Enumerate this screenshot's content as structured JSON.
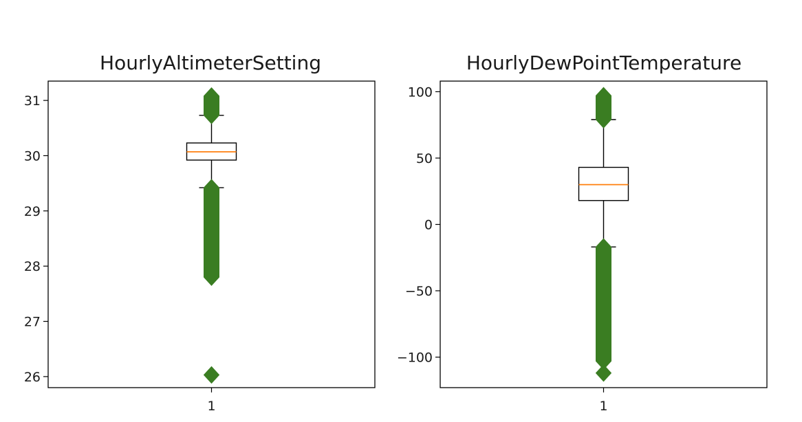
{
  "chart_data": [
    {
      "type": "box",
      "title": "HourlyAltimeterSetting",
      "xlabel": "",
      "ylabel": "",
      "categories": [
        "1"
      ],
      "ylim": [
        25.8,
        31.35
      ],
      "yticks": [
        26,
        27,
        28,
        29,
        30,
        31
      ],
      "ytick_labels": [
        "26",
        "27",
        "28",
        "29",
        "30",
        "31"
      ],
      "box": {
        "q1": 29.92,
        "median": 30.07,
        "q3": 30.23,
        "whisker_low": 29.42,
        "whisker_high": 30.73
      },
      "outliers_dense_ranges": [
        [
          30.73,
          31.08
        ],
        [
          27.8,
          29.42
        ]
      ],
      "outliers_points": [
        26.03
      ],
      "colors": {
        "box": "#000000",
        "median": "#ff7f0e",
        "outliers": "#3a7d22"
      }
    },
    {
      "type": "box",
      "title": "HourlyDewPointTemperature",
      "xlabel": "",
      "ylabel": "",
      "categories": [
        "1"
      ],
      "ylim": [
        -123,
        108
      ],
      "yticks": [
        -100,
        -50,
        0,
        50,
        100
      ],
      "ytick_labels": [
        "−100",
        "−50",
        "0",
        "50",
        "100"
      ],
      "box": {
        "q1": 18,
        "median": 30,
        "q3": 43,
        "whisker_low": -17,
        "whisker_high": 79
      },
      "outliers_dense_ranges": [
        [
          79,
          97
        ],
        [
          -103,
          -17
        ]
      ],
      "outliers_points": [
        -112
      ],
      "colors": {
        "box": "#000000",
        "median": "#ff7f0e",
        "outliers": "#3a7d22"
      }
    }
  ]
}
